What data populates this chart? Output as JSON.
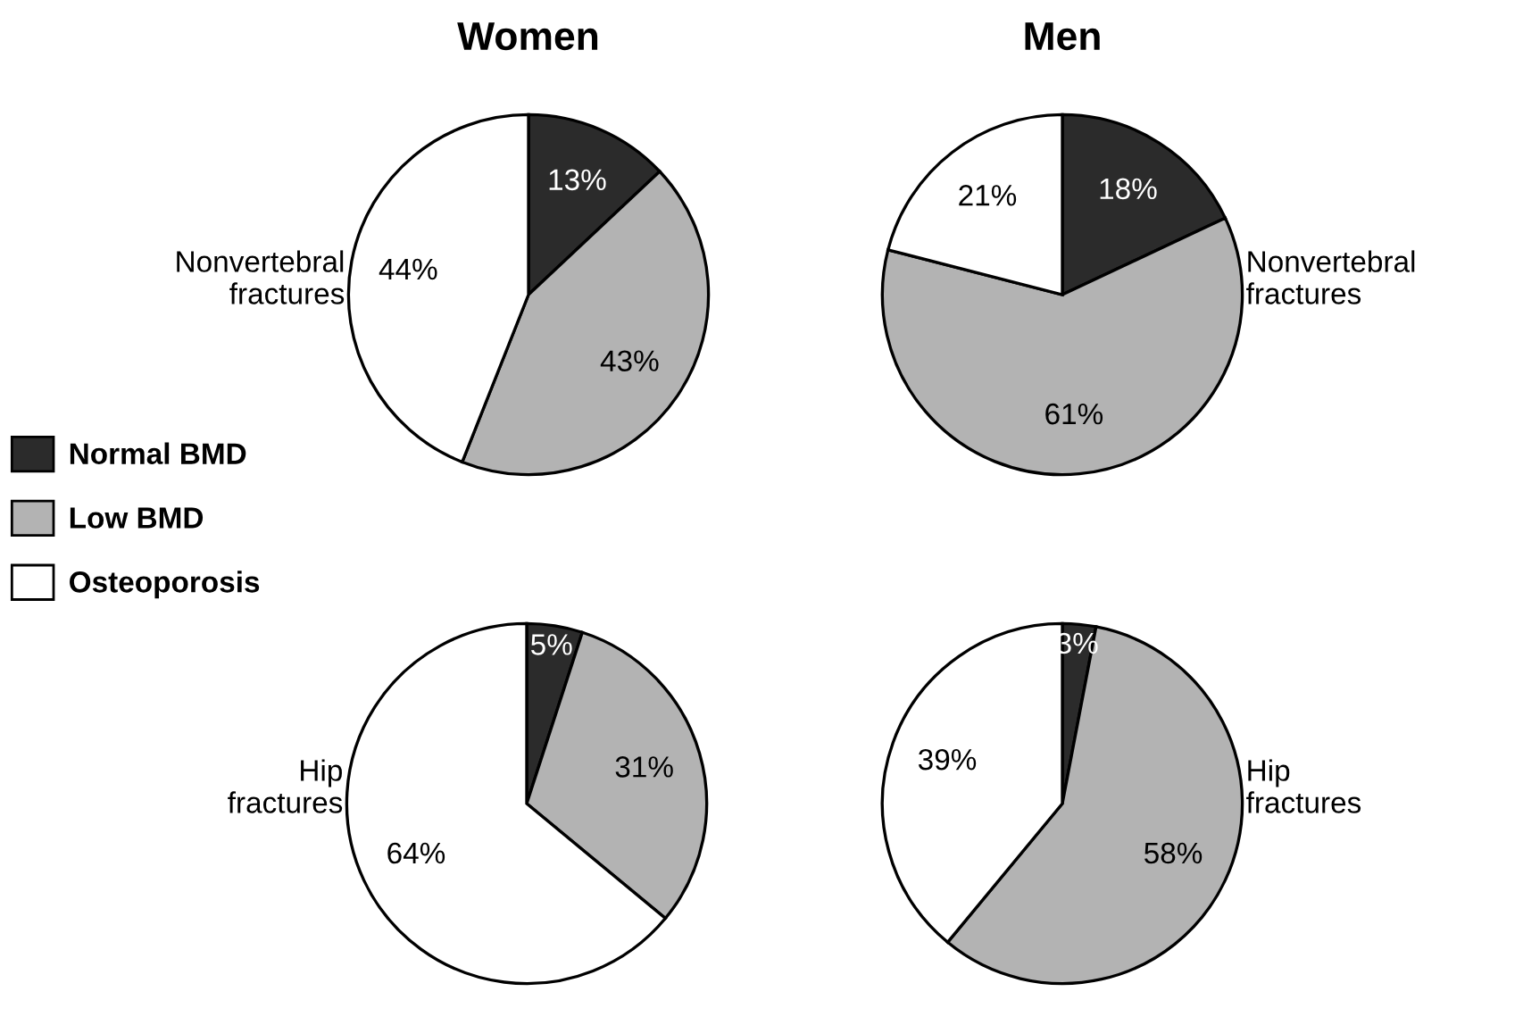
{
  "chart_data": [
    {
      "type": "pie",
      "title": "Women",
      "categories": [
        "Normal BMD",
        "Low BMD",
        "Osteoporosis"
      ],
      "values": [
        13,
        43,
        44
      ],
      "value_labels": [
        "13%",
        "43%",
        "44%"
      ],
      "colors": [
        "#2b2b2b",
        "#b3b3b3",
        "#ffffff"
      ],
      "annotations": [
        "Nonvertebral fractures"
      ],
      "legend": "bottom left"
    },
    {
      "type": "pie",
      "title": "Men",
      "categories": [
        null,
        null,
        null
      ],
      "values": [
        18,
        61,
        21
      ],
      "value_labels": [
        "18%",
        "61%",
        "21%"
      ],
      "colors": [
        "#2b2b2b",
        "#b3b3b3",
        "#ffffff"
      ],
      "annotations": [
        "Nonvertebral fractures"
      ]
    },
    {
      "type": "pie",
      "categories": [
        null,
        null,
        null
      ],
      "values": [
        5,
        31,
        64
      ],
      "value_labels": [
        "5%",
        "31%",
        "64%"
      ],
      "colors": [
        "#2b2b2b",
        "#b3b3b3",
        "#ffffff"
      ],
      "annotations": [
        "Hip fractures"
      ]
    },
    {
      "type": "pie",
      "categories": [
        null,
        null,
        null
      ],
      "values": [
        3,
        58,
        39
      ],
      "value_labels": [
        "3%",
        "58%",
        "39%"
      ],
      "colors": [
        "#2b2b2b",
        "#b3b3b3",
        "#ffffff"
      ],
      "annotations": [
        "Hip fractures"
      ]
    }
  ]
}
